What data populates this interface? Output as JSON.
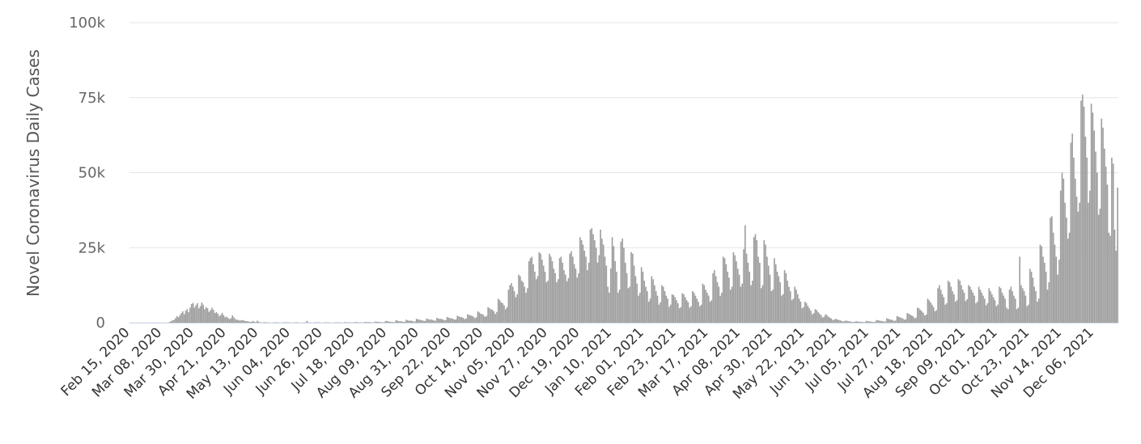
{
  "chart_data": {
    "type": "bar",
    "y_label": "Novel Coronavirus Daily Cases",
    "color": "#9e9e9e",
    "grid": true,
    "ylim": [
      0,
      100000
    ],
    "yticks": [
      0,
      {
        "value": 25000,
        "label": "25k"
      },
      {
        "value": 50000,
        "label": "50k"
      },
      {
        "value": 75000,
        "label": "75k"
      },
      {
        "value": 100000,
        "label": "100k"
      }
    ],
    "categories": [
      "Feb 15, 2020",
      null,
      null,
      null,
      null,
      null,
      null,
      null,
      null,
      null,
      null,
      null,
      null,
      null,
      null,
      null,
      null,
      null,
      null,
      null,
      null,
      null,
      "Mar 08, 2020",
      null,
      null,
      null,
      null,
      null,
      null,
      null,
      null,
      null,
      null,
      null,
      null,
      null,
      null,
      null,
      null,
      null,
      null,
      null,
      null,
      null,
      "Mar 30, 2020",
      null,
      null,
      null,
      null,
      null,
      null,
      null,
      null,
      null,
      null,
      null,
      null,
      null,
      null,
      null,
      null,
      null,
      null,
      null,
      null,
      null,
      "Apr 21, 2020",
      null,
      null,
      null,
      null,
      null,
      null,
      null,
      null,
      null,
      null,
      null,
      null,
      null,
      null,
      null,
      null,
      null,
      null,
      null,
      null,
      null,
      "May 13, 2020",
      null,
      null,
      null,
      null,
      null,
      null,
      null,
      null,
      null,
      null,
      null,
      null,
      null,
      null,
      null,
      null,
      null,
      null,
      null,
      null,
      null,
      "Jun 04, 2020",
      null,
      null,
      null,
      null,
      null,
      null,
      null,
      null,
      null,
      null,
      null,
      null,
      null,
      null,
      null,
      null,
      null,
      null,
      null,
      null,
      null,
      "Jun 26, 2020",
      null,
      null,
      null,
      null,
      null,
      null,
      null,
      null,
      null,
      null,
      null,
      null,
      null,
      null,
      null,
      null,
      null,
      null,
      null,
      null,
      null,
      "Jul 18, 2020",
      null,
      null,
      null,
      null,
      null,
      null,
      null,
      null,
      null,
      null,
      null,
      null,
      null,
      null,
      null,
      null,
      null,
      null,
      null,
      null,
      null,
      "Aug 09, 2020",
      null,
      null,
      null,
      null,
      null,
      null,
      null,
      null,
      null,
      null,
      null,
      null,
      null,
      null,
      null,
      null,
      null,
      null,
      null,
      null,
      null,
      "Aug 31, 2020",
      null,
      null,
      null,
      null,
      null,
      null,
      null,
      null,
      null,
      null,
      null,
      null,
      null,
      null,
      null,
      null,
      null,
      null,
      null,
      null,
      null,
      "Sep 22, 2020",
      null,
      null,
      null,
      null,
      null,
      null,
      null,
      null,
      null,
      null,
      null,
      null,
      null,
      null,
      null,
      null,
      null,
      null,
      null,
      null,
      null,
      "Oct 14, 2020",
      null,
      null,
      null,
      null,
      null,
      null,
      null,
      null,
      null,
      null,
      null,
      null,
      null,
      null,
      null,
      null,
      null,
      null,
      null,
      null,
      null,
      "Nov 05, 2020",
      null,
      null,
      null,
      null,
      null,
      null,
      null,
      null,
      null,
      null,
      null,
      null,
      null,
      null,
      null,
      null,
      null,
      null,
      null,
      null,
      null,
      "Nov 27, 2020",
      null,
      null,
      null,
      null,
      null,
      null,
      null,
      null,
      null,
      null,
      null,
      null,
      null,
      null,
      null,
      null,
      null,
      null,
      null,
      null,
      null,
      "Dec 19, 2020",
      null,
      null,
      null,
      null,
      null,
      null,
      null,
      null,
      null,
      null,
      null,
      null,
      null,
      null,
      null,
      null,
      null,
      null,
      null,
      null,
      null,
      "Jan 10, 2021",
      null,
      null,
      null,
      null,
      null,
      null,
      null,
      null,
      null,
      null,
      null,
      null,
      null,
      null,
      null,
      null,
      null,
      null,
      null,
      null,
      null,
      "Feb 01, 2021",
      null,
      null,
      null,
      null,
      null,
      null,
      null,
      null,
      null,
      null,
      null,
      null,
      null,
      null,
      null,
      null,
      null,
      null,
      null,
      null,
      null,
      "Feb 23, 2021",
      null,
      null,
      null,
      null,
      null,
      null,
      null,
      null,
      null,
      null,
      null,
      null,
      null,
      null,
      null,
      null,
      null,
      null,
      null,
      null,
      null,
      "Mar 17, 2021",
      null,
      null,
      null,
      null,
      null,
      null,
      null,
      null,
      null,
      null,
      null,
      null,
      null,
      null,
      null,
      null,
      null,
      null,
      null,
      null,
      null,
      "Apr 08, 2021",
      null,
      null,
      null,
      null,
      null,
      null,
      null,
      null,
      null,
      null,
      null,
      null,
      null,
      null,
      null,
      null,
      null,
      null,
      null,
      null,
      null,
      "Apr 30, 2021",
      null,
      null,
      null,
      null,
      null,
      null,
      null,
      null,
      null,
      null,
      null,
      null,
      null,
      null,
      null,
      null,
      null,
      null,
      null,
      null,
      null,
      "May 22, 2021",
      null,
      null,
      null,
      null,
      null,
      null,
      null,
      null,
      null,
      null,
      null,
      null,
      null,
      null,
      null,
      null,
      null,
      null,
      null,
      null,
      null,
      "Jun 13, 2021",
      null,
      null,
      null,
      null,
      null,
      null,
      null,
      null,
      null,
      null,
      null,
      null,
      null,
      null,
      null,
      null,
      null,
      null,
      null,
      null,
      null,
      "Jul 05, 2021",
      null,
      null,
      null,
      null,
      null,
      null,
      null,
      null,
      null,
      null,
      null,
      null,
      null,
      null,
      null,
      null,
      null,
      null,
      null,
      null,
      null,
      "Jul 27, 2021",
      null,
      null,
      null,
      null,
      null,
      null,
      null,
      null,
      null,
      null,
      null,
      null,
      null,
      null,
      null,
      null,
      null,
      null,
      null,
      null,
      null,
      "Aug 18, 2021",
      null,
      null,
      null,
      null,
      null,
      null,
      null,
      null,
      null,
      null,
      null,
      null,
      null,
      null,
      null,
      null,
      null,
      null,
      null,
      null,
      null,
      "Sep 09, 2021",
      null,
      null,
      null,
      null,
      null,
      null,
      null,
      null,
      null,
      null,
      null,
      null,
      null,
      null,
      null,
      null,
      null,
      null,
      null,
      null,
      null,
      "Oct 01, 2021",
      null,
      null,
      null,
      null,
      null,
      null,
      null,
      null,
      null,
      null,
      null,
      null,
      null,
      null,
      null,
      null,
      null,
      null,
      null,
      null,
      null,
      "Oct 23, 2021",
      null,
      null,
      null,
      null,
      null,
      null,
      null,
      null,
      null,
      null,
      null,
      null,
      null,
      null,
      null,
      null,
      null,
      null,
      null,
      null,
      null,
      "Nov 14, 2021",
      null,
      null,
      null,
      null,
      null,
      null,
      null,
      null,
      null,
      null,
      null,
      null,
      null,
      null,
      null,
      null,
      null,
      null,
      null,
      null,
      null,
      "Dec 06, 2021",
      null,
      null,
      null,
      null,
      null,
      null,
      null,
      null,
      null,
      null,
      null,
      null,
      null,
      null,
      null,
      null
    ],
    "values": [
      0,
      0,
      0,
      0,
      0,
      0,
      0,
      0,
      0,
      0,
      0,
      0,
      0,
      0,
      0,
      0,
      0,
      0,
      0,
      0,
      0,
      0,
      0,
      0,
      0,
      0,
      0,
      300,
      500,
      800,
      900,
      1500,
      2200,
      1800,
      2500,
      3200,
      3800,
      2800,
      4000,
      4500,
      3500,
      5000,
      6200,
      6600,
      5000,
      5800,
      6500,
      4800,
      5500,
      6700,
      6000,
      4500,
      5200,
      4800,
      3600,
      4200,
      5000,
      4300,
      3200,
      3500,
      3000,
      2200,
      2600,
      3300,
      2500,
      1800,
      2000,
      1600,
      1200,
      1500,
      2500,
      1800,
      1200,
      1000,
      900,
      700,
      800,
      900,
      700,
      500,
      500,
      400,
      300,
      300,
      600,
      300,
      200,
      700,
      300,
      100,
      100,
      100,
      200,
      100,
      100,
      100,
      0,
      0,
      100,
      100,
      100,
      100,
      0,
      0,
      0,
      100,
      100,
      100,
      100,
      100,
      0,
      0,
      100,
      100,
      100,
      100,
      0,
      0,
      0,
      100,
      100,
      600,
      100,
      100,
      0,
      0,
      100,
      100,
      100,
      100,
      100,
      0,
      0,
      100,
      100,
      100,
      100,
      0,
      0,
      0,
      100,
      100,
      100,
      100,
      100,
      0,
      0,
      200,
      100,
      100,
      100,
      100,
      0,
      100,
      200,
      200,
      100,
      100,
      100,
      100,
      100,
      300,
      200,
      200,
      200,
      100,
      100,
      100,
      400,
      300,
      300,
      200,
      200,
      100,
      200,
      600,
      500,
      400,
      300,
      300,
      200,
      200,
      800,
      700,
      500,
      500,
      400,
      300,
      300,
      1000,
      800,
      600,
      700,
      600,
      400,
      400,
      1300,
      1100,
      1000,
      900,
      800,
      600,
      600,
      1400,
      1200,
      1000,
      1100,
      900,
      700,
      700,
      1600,
      1400,
      1200,
      1300,
      1100,
      800,
      900,
      1900,
      1700,
      1500,
      1500,
      1300,
      1000,
      1100,
      2300,
      2100,
      1900,
      1800,
      1600,
      1200,
      1400,
      2800,
      2600,
      2400,
      2300,
      2000,
      1500,
      1800,
      3800,
      3400,
      3000,
      2900,
      2500,
      1900,
      2300,
      5200,
      4800,
      4500,
      4300,
      3800,
      2900,
      3600,
      8000,
      7500,
      6800,
      6500,
      5800,
      4500,
      5200,
      11000,
      12500,
      13200,
      12000,
      10500,
      8500,
      9500,
      16000,
      15500,
      14000,
      13500,
      12000,
      10000,
      11500,
      20500,
      21500,
      22000,
      19500,
      17000,
      14500,
      15500,
      23500,
      23000,
      21000,
      19000,
      17000,
      13500,
      14000,
      23000,
      22000,
      20500,
      18000,
      16500,
      13500,
      14500,
      21500,
      22000,
      20000,
      17500,
      16000,
      13800,
      14800,
      23000,
      23800,
      22000,
      19500,
      18000,
      15000,
      16500,
      28500,
      27500,
      26000,
      24000,
      22000,
      17500,
      20000,
      31000,
      31500,
      29500,
      27500,
      25000,
      20000,
      22500,
      31000,
      28000,
      26000,
      22000,
      19000,
      12000,
      10000,
      18000,
      28500,
      25500,
      20500,
      17000,
      10000,
      11000,
      27000,
      28000,
      25000,
      20000,
      16500,
      11500,
      12000,
      23500,
      23000,
      19000,
      15500,
      13000,
      9000,
      10000,
      18500,
      17000,
      14000,
      12000,
      10500,
      7000,
      8000,
      15500,
      14500,
      12500,
      10500,
      9000,
      6000,
      6800,
      12500,
      12000,
      10500,
      9000,
      8000,
      5300,
      6000,
      9500,
      9200,
      8500,
      7500,
      6500,
      4800,
      5200,
      9800,
      9500,
      8500,
      7500,
      6800,
      5000,
      5500,
      10500,
      10000,
      9000,
      8000,
      7000,
      5500,
      6000,
      13000,
      12500,
      11000,
      10000,
      9000,
      7000,
      7500,
      16500,
      17500,
      15500,
      13500,
      12000,
      9000,
      10000,
      22000,
      21500,
      19500,
      17000,
      15000,
      11000,
      12000,
      23500,
      22500,
      20500,
      18000,
      16000,
      12000,
      13000,
      24500,
      32500,
      23000,
      20000,
      17000,
      12500,
      14000,
      28500,
      29500,
      27500,
      22000,
      20000,
      11500,
      12500,
      27500,
      26000,
      22000,
      19000,
      16000,
      10500,
      11000,
      21500,
      19500,
      17000,
      15500,
      13500,
      9000,
      9500,
      17500,
      16500,
      14000,
      12000,
      10500,
      7500,
      8000,
      12000,
      11000,
      9500,
      8000,
      7000,
      4800,
      5200,
      7000,
      6500,
      5500,
      4800,
      4000,
      2800,
      3200,
      4500,
      4200,
      3500,
      3000,
      2500,
      1700,
      2000,
      2800,
      2500,
      2000,
      1700,
      1400,
      900,
      1000,
      1300,
      1100,
      900,
      800,
      600,
      400,
      500,
      700,
      600,
      500,
      400,
      300,
      200,
      300,
      500,
      400,
      300,
      300,
      200,
      200,
      200,
      600,
      500,
      400,
      400,
      300,
      200,
      300,
      900,
      800,
      700,
      600,
      500,
      400,
      400,
      1500,
      1300,
      1100,
      1000,
      900,
      600,
      700,
      2200,
      2000,
      1800,
      1600,
      1400,
      1000,
      1100,
      3200,
      3000,
      2700,
      2400,
      2100,
      1500,
      1700,
      5000,
      4800,
      4300,
      3800,
      3300,
      2400,
      2700,
      8000,
      7500,
      6800,
      6000,
      5200,
      3800,
      4200,
      11500,
      12500,
      11000,
      9500,
      8500,
      6000,
      6500,
      14000,
      13500,
      12000,
      10500,
      9500,
      7000,
      7500,
      14500,
      14000,
      12500,
      11000,
      10000,
      7200,
      7800,
      12500,
      12000,
      11000,
      10000,
      9000,
      6500,
      7000,
      12000,
      11000,
      10000,
      9000,
      8000,
      5800,
      6500,
      11500,
      10500,
      9500,
      8500,
      7500,
      5500,
      6000,
      12000,
      11500,
      10000,
      9000,
      8000,
      5000,
      4500,
      11000,
      12000,
      10500,
      9000,
      8000,
      4500,
      5000,
      22000,
      12500,
      11500,
      10500,
      9000,
      5500,
      6000,
      18000,
      17000,
      15000,
      12000,
      10500,
      7000,
      8000,
      26000,
      25500,
      22000,
      20000,
      17000,
      11000,
      13500,
      35000,
      35500,
      30000,
      26000,
      22000,
      16000,
      21000,
      44000,
      50000,
      48000,
      40000,
      35000,
      28000,
      30000,
      60000,
      63000,
      55000,
      48000,
      42000,
      37000,
      40000,
      74000,
      76000,
      72000,
      62000,
      55000,
      40000,
      44000,
      73000,
      70000,
      64000,
      57000,
      50000,
      36000,
      38000,
      68000,
      65000,
      58000,
      52000,
      46000,
      30000,
      29000,
      55000,
      53000,
      31000,
      24000,
      45000
    ]
  }
}
